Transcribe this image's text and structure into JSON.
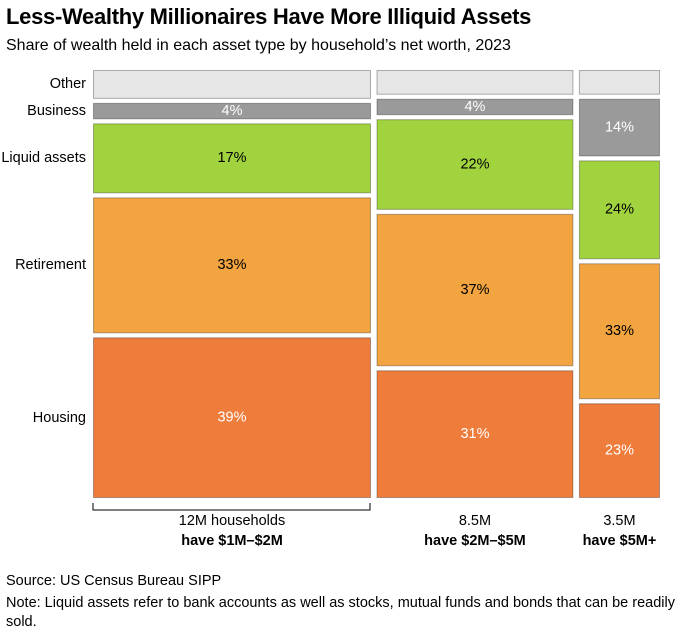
{
  "chart_data": {
    "type": "marimekko",
    "title": "Less-Wealthy Millionaires Have More Illiquid Assets",
    "subtitle": "Share of wealth held in each asset type by household’s net worth, 2023",
    "categories": [
      "have $1M–$2M",
      "have $2M–$5M",
      "have $5M+"
    ],
    "widths": [
      12,
      8.5,
      3.5
    ],
    "width_labels": [
      "12M households",
      "8.5M",
      "3.5M"
    ],
    "series": [
      {
        "name": "Housing",
        "color": "#ee7c3b",
        "label_color": "#ffffff",
        "values": [
          39,
          31,
          23
        ],
        "value_labels": [
          "39%",
          "31%",
          "23%"
        ]
      },
      {
        "name": "Retirement",
        "color": "#f2a441",
        "label_color": "#000000",
        "values": [
          33,
          37,
          33
        ],
        "value_labels": [
          "33%",
          "37%",
          "33%"
        ]
      },
      {
        "name": "Liquid assets",
        "color": "#a1d33f",
        "label_color": "#000000",
        "values": [
          17,
          22,
          24
        ],
        "value_labels": [
          "17%",
          "22%",
          "24%"
        ]
      },
      {
        "name": "Business",
        "color": "#9a9a9a",
        "label_color": "#ffffff",
        "values": [
          4,
          4,
          14
        ],
        "value_labels": [
          "4%",
          "4%",
          "14%"
        ]
      },
      {
        "name": "Other",
        "color": "#e6e6e6",
        "label_color": "#000000",
        "values": [
          7,
          6,
          6
        ],
        "value_labels": [
          null,
          null,
          null
        ]
      }
    ],
    "source": "Source: US Census Bureau SIPP",
    "note": "Note: Liquid assets refer to bank accounts as well as stocks, mutual funds and bonds that can be readily sold."
  }
}
